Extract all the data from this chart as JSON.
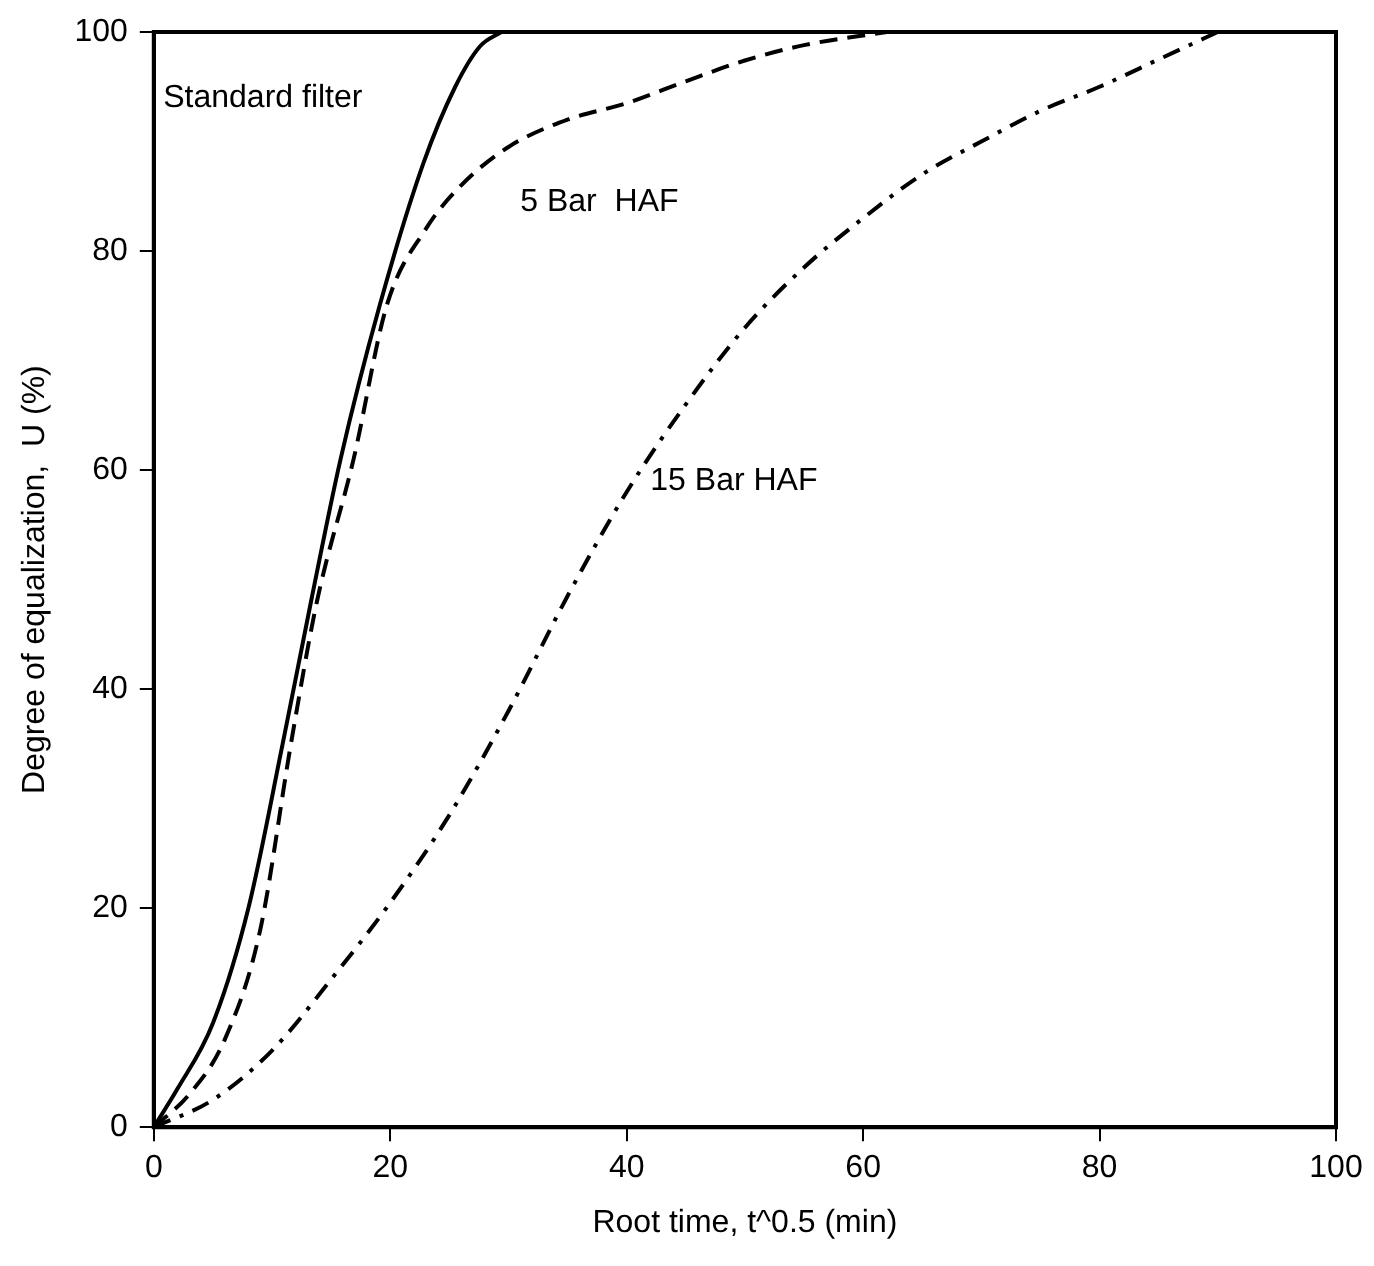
{
  "chart_data": {
    "type": "line",
    "xlabel": "Root time, t^0.5 (min)",
    "ylabel": "Degree of equalization,  U (%)",
    "xlim": [
      0,
      100
    ],
    "xticks": [
      0,
      20,
      40,
      60,
      80,
      100
    ],
    "ylim": [
      0,
      100
    ],
    "yticks": [
      0,
      20,
      40,
      60,
      80,
      100
    ],
    "grid": false,
    "legend": false,
    "marker": "none",
    "series": [
      {
        "name": "Standard filter",
        "color": "#000000",
        "line_style": "solid",
        "x": [
          0,
          2,
          5,
          8,
          10.9,
          13.3,
          15.8,
          19.1,
          22.8,
          25.5,
          27.6,
          29.4
        ],
        "values": [
          0,
          3.5,
          9.5,
          20,
          35,
          48,
          61,
          75,
          88,
          95,
          98.7,
          100
        ]
      },
      {
        "name": "5 Bar  HAF",
        "color": "#000000",
        "line_style": "dashed",
        "x": [
          0,
          3,
          6,
          9,
          11.6,
          13.8,
          16.9,
          19.7,
          23,
          26,
          30,
          35,
          40,
          45,
          50,
          55,
          62
        ],
        "values": [
          0,
          3,
          8,
          18,
          35,
          48,
          61,
          75,
          82,
          86,
          89.5,
          92,
          93.5,
          95.5,
          97.4,
          98.8,
          100
        ]
      },
      {
        "name": "15 Bar HAF",
        "color": "#000000",
        "line_style": "dashdot",
        "x": [
          0,
          5,
          10,
          15,
          20,
          25,
          30,
          35,
          40,
          45,
          50,
          55,
          60,
          65,
          70,
          75,
          80,
          85,
          90
        ],
        "values": [
          0,
          2.5,
          7,
          13.5,
          20.5,
          28.5,
          38,
          48.5,
          58,
          66,
          73,
          78.5,
          83,
          87,
          90,
          92.8,
          95,
          97.5,
          100
        ]
      }
    ]
  }
}
